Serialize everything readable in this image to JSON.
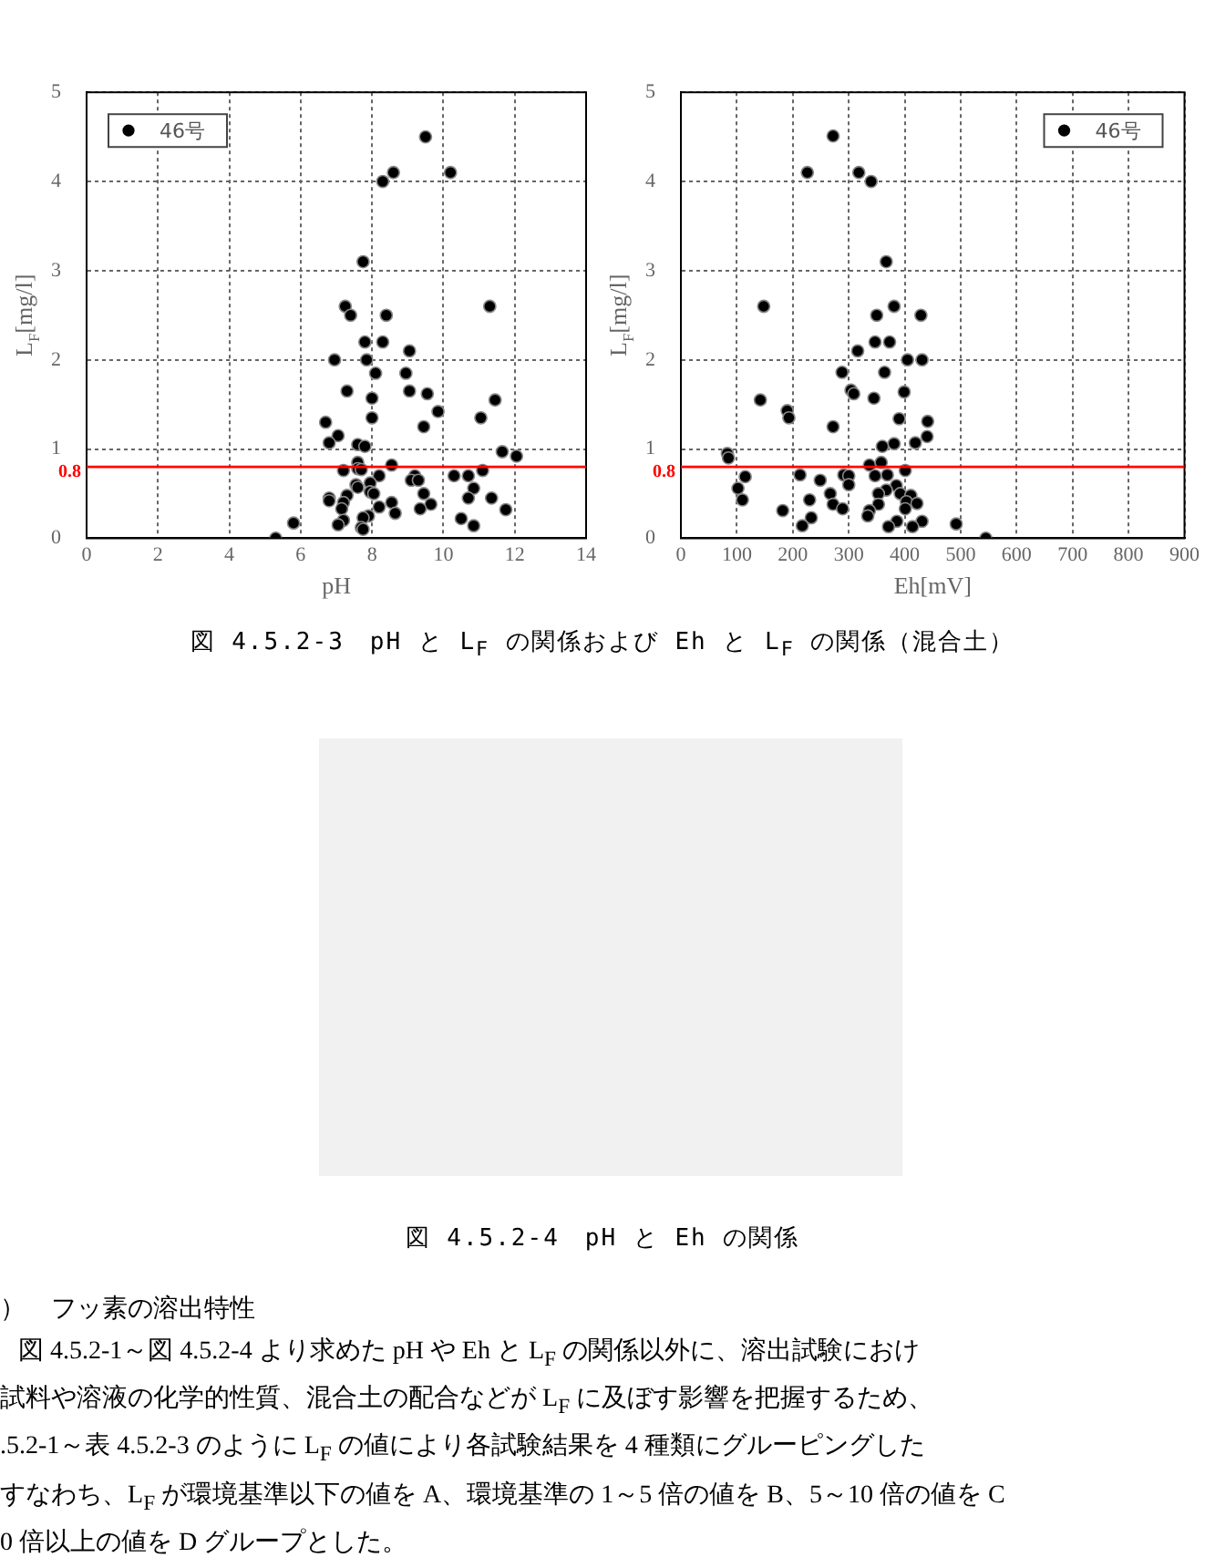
{
  "chart_data": [
    {
      "type": "scatter",
      "xlabel": "pH",
      "ylabel": "L$_{F}$[mg/l]",
      "xlim": [
        0,
        14
      ],
      "xticks": [
        0,
        2,
        4,
        6,
        8,
        10,
        12,
        14
      ],
      "ylim": [
        0,
        5
      ],
      "yticks": [
        0,
        1,
        2,
        3,
        4,
        5
      ],
      "grid": true,
      "legend": "top left",
      "marker": "circle",
      "ref_lines": [
        {
          "axis": "y",
          "value": 0.8,
          "label": "0.8",
          "color": "#ff0000"
        }
      ],
      "annotations": [
        "図 4.5.2-3　pH と L$_{F}$ の関係および Eh と L$_{F}$ の関係（混合土）"
      ],
      "series": [
        {
          "name": "46号",
          "color": "#000000",
          "x": [
            9.5,
            8.3,
            8.6,
            10.2,
            7.75,
            7.25,
            7.4,
            8.4,
            11.3,
            7.8,
            8.3,
            9.05,
            6.95,
            7.85,
            8.1,
            8.95,
            7.3,
            9.05,
            9.55,
            8.0,
            11.45,
            9.85,
            8.0,
            11.05,
            6.7,
            9.45,
            7.05,
            6.8,
            7.6,
            7.8,
            11.65,
            12.05,
            7.6,
            8.55,
            7.6,
            7.7,
            7.2,
            11.1,
            8.2,
            9.2,
            10.3,
            10.7,
            9.1,
            9.3,
            7.95,
            7.55,
            7.6,
            10.85,
            7.95,
            8.05,
            9.45,
            7.3,
            6.8,
            6.8,
            11.35,
            10.7,
            7.2,
            8.55,
            9.65,
            8.2,
            7.15,
            9.35,
            11.75,
            8.65,
            7.9,
            7.75,
            10.5,
            7.2,
            5.8,
            7.05,
            10.85,
            7.7,
            7.75,
            5.3
          ],
          "values": [
            4.5,
            4.0,
            4.1,
            4.1,
            3.1,
            2.6,
            2.5,
            2.5,
            2.6,
            2.2,
            2.2,
            2.1,
            2.0,
            2.0,
            1.85,
            1.85,
            1.65,
            1.65,
            1.62,
            1.57,
            1.55,
            1.42,
            1.35,
            1.35,
            1.3,
            1.25,
            1.15,
            1.07,
            1.05,
            1.03,
            0.97,
            0.92,
            0.85,
            0.82,
            0.78,
            0.77,
            0.76,
            0.76,
            0.7,
            0.7,
            0.7,
            0.7,
            0.65,
            0.65,
            0.62,
            0.6,
            0.57,
            0.56,
            0.52,
            0.5,
            0.5,
            0.48,
            0.45,
            0.42,
            0.45,
            0.45,
            0.4,
            0.4,
            0.38,
            0.35,
            0.33,
            0.33,
            0.32,
            0.28,
            0.25,
            0.23,
            0.22,
            0.2,
            0.17,
            0.15,
            0.14,
            0.12,
            0.1,
            0.0
          ]
        }
      ]
    },
    {
      "type": "scatter",
      "xlabel": "Eh[mV]",
      "ylabel": "L$_{F}$[mg/l]",
      "xlim": [
        0,
        900
      ],
      "xticks": [
        0,
        100,
        200,
        300,
        400,
        500,
        600,
        700,
        800,
        900
      ],
      "ylim": [
        0,
        5
      ],
      "yticks": [
        0,
        1,
        2,
        3,
        4,
        5
      ],
      "grid": true,
      "legend": "top right",
      "marker": "circle",
      "ref_lines": [
        {
          "axis": "y",
          "value": 0.8,
          "label": "0.8",
          "color": "#ff0000"
        }
      ],
      "annotations": [
        "図 4.5.2-4　pH と Eh の関係",
        "）　フッ素の溶出特性",
        "図 4.5.2-1～図 4.5.2-4 より求めた pH や Eh と L$_{F}$ の関係以外に、溶出試験におけ",
        "試料や溶液の化学的性質、混合土の配合などが L$_{F}$ に及ぼす影響を把握するため、",
        ".5.2-1～表 4.5.2-3 のように L$_{F}$ の値により各試験結果を 4 種類にグルーピングした",
        "すなわち、L$_{F}$ が環境基準以下の値を A、環境基準の 1～5 倍の値を B、5～10 倍の値を C",
        "0 倍以上の値を D グループとした。"
      ],
      "series": [
        {
          "name": "46号",
          "color": "#000000",
          "x": [
            272,
            226,
            318,
            340,
            367,
            148,
            381,
            350,
            429,
            347,
            373,
            316,
            405,
            431,
            288,
            364,
            304,
            309,
            399,
            345,
            142,
            190,
            193,
            390,
            441,
            272,
            440,
            419,
            381,
            360,
            83,
            85,
            337,
            358,
            401,
            115,
            213,
            291,
            300,
            347,
            249,
            369,
            102,
            300,
            385,
            367,
            267,
            353,
            392,
            411,
            110,
            230,
            272,
            353,
            403,
            422,
            182,
            289,
            337,
            401,
            334,
            233,
            386,
            431,
            217,
            371,
            414,
            492,
            545
          ],
          "values": [
            4.51,
            4.1,
            4.1,
            4.0,
            3.1,
            2.6,
            2.6,
            2.5,
            2.5,
            2.2,
            2.2,
            2.1,
            2.0,
            2.0,
            1.86,
            1.86,
            1.66,
            1.62,
            1.64,
            1.57,
            1.55,
            1.43,
            1.35,
            1.34,
            1.31,
            1.25,
            1.14,
            1.07,
            1.06,
            1.03,
            0.95,
            0.9,
            0.82,
            0.85,
            0.76,
            0.69,
            0.71,
            0.71,
            0.7,
            0.7,
            0.65,
            0.71,
            0.56,
            0.6,
            0.59,
            0.54,
            0.5,
            0.5,
            0.5,
            0.48,
            0.43,
            0.43,
            0.38,
            0.38,
            0.41,
            0.39,
            0.31,
            0.33,
            0.31,
            0.33,
            0.25,
            0.23,
            0.19,
            0.19,
            0.14,
            0.13,
            0.13,
            0.16,
            0.0
          ]
        }
      ]
    }
  ]
}
